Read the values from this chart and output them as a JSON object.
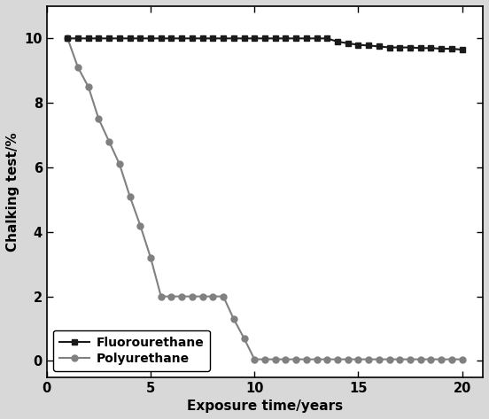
{
  "fluorourethane_x": [
    1,
    1.5,
    2,
    2.5,
    3,
    3.5,
    4,
    4.5,
    5,
    5.5,
    6,
    6.5,
    7,
    7.5,
    8,
    8.5,
    9,
    9.5,
    10,
    10.5,
    11,
    11.5,
    12,
    12.5,
    13,
    13.5,
    14,
    14.5,
    15,
    15.5,
    16,
    16.5,
    17,
    17.5,
    18,
    18.5,
    19,
    19.5,
    20
  ],
  "fluorourethane_y": [
    10.0,
    10.0,
    10.0,
    10.0,
    10.0,
    10.0,
    10.0,
    10.0,
    10.0,
    10.0,
    10.0,
    10.0,
    10.0,
    10.0,
    10.0,
    10.0,
    10.0,
    10.0,
    10.0,
    10.0,
    10.0,
    10.0,
    10.0,
    10.0,
    10.0,
    10.0,
    9.9,
    9.85,
    9.8,
    9.78,
    9.75,
    9.72,
    9.72,
    9.72,
    9.7,
    9.7,
    9.68,
    9.68,
    9.65
  ],
  "polyurethane_x": [
    1,
    1.5,
    2,
    2.5,
    3,
    3.5,
    4,
    4.5,
    5,
    5.5,
    6,
    6.5,
    7,
    7.5,
    8,
    8.5,
    9,
    9.5,
    10,
    10.5,
    11,
    11.5,
    12,
    12.5,
    13,
    13.5,
    14,
    14.5,
    15,
    15.5,
    16,
    16.5,
    17,
    17.5,
    18,
    18.5,
    19,
    19.5,
    20
  ],
  "polyurethane_y": [
    10.0,
    9.1,
    8.5,
    7.5,
    6.8,
    6.1,
    5.1,
    4.2,
    3.2,
    2.0,
    2.0,
    2.0,
    2.0,
    2.0,
    2.0,
    2.0,
    1.3,
    0.7,
    0.05,
    0.05,
    0.05,
    0.05,
    0.05,
    0.05,
    0.05,
    0.05,
    0.05,
    0.05,
    0.05,
    0.05,
    0.05,
    0.05,
    0.05,
    0.05,
    0.05,
    0.05,
    0.05,
    0.05,
    0.05
  ],
  "xlabel": "Exposure time/years",
  "ylabel": "Chalking test/%",
  "xlim": [
    0,
    21
  ],
  "ylim": [
    -0.5,
    11.0
  ],
  "xticks": [
    0,
    5,
    10,
    15,
    20
  ],
  "yticks": [
    0,
    2,
    4,
    6,
    8,
    10
  ],
  "fluorourethane_color": "#1a1a1a",
  "polyurethane_color": "#808080",
  "legend_labels": [
    "Fluorourethane",
    "Polyurethane"
  ],
  "fluorourethane_marker": "s",
  "polyurethane_marker": "o",
  "linewidth": 1.5,
  "markersize": 5,
  "figure_background": "#d8d8d8",
  "axes_background": "#ffffff",
  "grid": false
}
